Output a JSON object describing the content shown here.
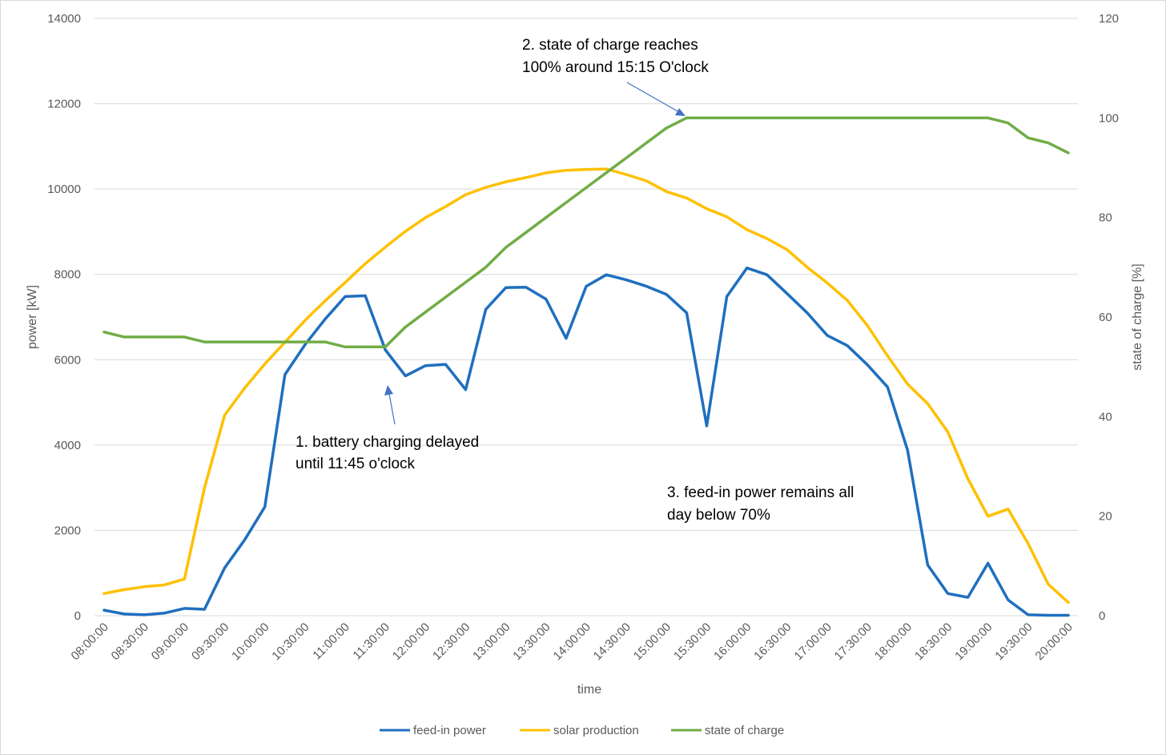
{
  "chart_data": {
    "type": "line",
    "title": "",
    "xlabel": "time",
    "ylabel": "power [kW]",
    "y2label": "state of charge [%]",
    "ylim": [
      0,
      14000
    ],
    "y2lim": [
      0,
      120
    ],
    "grid": true,
    "legend_position": "bottom",
    "y_ticks": [
      "0",
      "2000",
      "4000",
      "6000",
      "8000",
      "10000",
      "12000",
      "14000"
    ],
    "y2_ticks": [
      "0",
      "20",
      "40",
      "60",
      "80",
      "100",
      "120"
    ],
    "x_tick_labels": [
      "08:00:00",
      "08:30:00",
      "09:00:00",
      "09:30:00",
      "10:00:00",
      "10:30:00",
      "11:00:00",
      "11:30:00",
      "12:00:00",
      "12:30:00",
      "13:00:00",
      "13:30:00",
      "14:00:00",
      "14:30:00",
      "15:00:00",
      "15:30:00",
      "16:00:00",
      "16:30:00",
      "17:00:00",
      "17:30:00",
      "18:00:00",
      "18:30:00",
      "19:00:00",
      "19:30:00",
      "20:00:00"
    ],
    "x": [
      "08:00",
      "08:15",
      "08:30",
      "08:45",
      "09:00",
      "09:15",
      "09:30",
      "09:45",
      "10:00",
      "10:15",
      "10:30",
      "10:45",
      "11:00",
      "11:15",
      "11:30",
      "11:45",
      "12:00",
      "12:15",
      "12:30",
      "12:45",
      "13:00",
      "13:15",
      "13:30",
      "13:45",
      "14:00",
      "14:15",
      "14:30",
      "14:45",
      "15:00",
      "15:15",
      "15:30",
      "15:45",
      "16:00",
      "16:15",
      "16:30",
      "16:45",
      "17:00",
      "17:15",
      "17:30",
      "17:45",
      "18:00",
      "18:15",
      "18:30",
      "18:45",
      "19:00",
      "19:15",
      "19:30",
      "19:45",
      "20:00"
    ],
    "series": [
      {
        "name": "feed-in power",
        "axis": "left",
        "color": "#1f6fbf",
        "values": [
          130,
          40,
          20,
          60,
          170,
          150,
          1120,
          1780,
          2550,
          5650,
          6350,
          6950,
          7480,
          7500,
          6230,
          5620,
          5860,
          5890,
          5300,
          7180,
          7690,
          7700,
          7420,
          6500,
          7720,
          7990,
          7870,
          7720,
          7530,
          7100,
          4450,
          7480,
          8150,
          7990,
          7550,
          7100,
          6570,
          6330,
          5880,
          5360,
          3880,
          1190,
          520,
          430,
          1230,
          370,
          20,
          10,
          10
        ]
      },
      {
        "name": "solar production",
        "axis": "left",
        "color": "#ffc000",
        "values": [
          520,
          610,
          680,
          720,
          860,
          3000,
          4700,
          5340,
          5900,
          6410,
          6920,
          7380,
          7810,
          8250,
          8640,
          9010,
          9330,
          9590,
          9870,
          10040,
          10170,
          10270,
          10380,
          10440,
          10460,
          10470,
          10340,
          10190,
          9940,
          9790,
          9540,
          9350,
          9050,
          8840,
          8580,
          8170,
          7800,
          7390,
          6800,
          6090,
          5430,
          4970,
          4310,
          3210,
          2330,
          2500,
          1690,
          740,
          310
        ]
      },
      {
        "name": "state of charge",
        "axis": "right",
        "color": "#70ad47",
        "values": [
          57,
          56,
          56,
          56,
          56,
          55,
          55,
          55,
          55,
          55,
          55,
          55,
          54,
          54,
          54,
          58,
          61,
          64,
          67,
          70,
          74,
          77,
          80,
          83,
          86,
          89,
          92,
          95,
          98,
          100,
          100,
          100,
          100,
          100,
          100,
          100,
          100,
          100,
          100,
          100,
          100,
          100,
          100,
          100,
          100,
          99,
          96,
          95,
          93
        ]
      }
    ],
    "annotations": [
      {
        "lines": [
          "2. state of charge reaches",
          "100% around 15:15 O'clock"
        ]
      },
      {
        "lines": [
          "1. battery charging delayed",
          "until 11:45 o'clock"
        ]
      },
      {
        "lines": [
          "3. feed-in power remains all",
          "day below 70%"
        ]
      }
    ]
  }
}
